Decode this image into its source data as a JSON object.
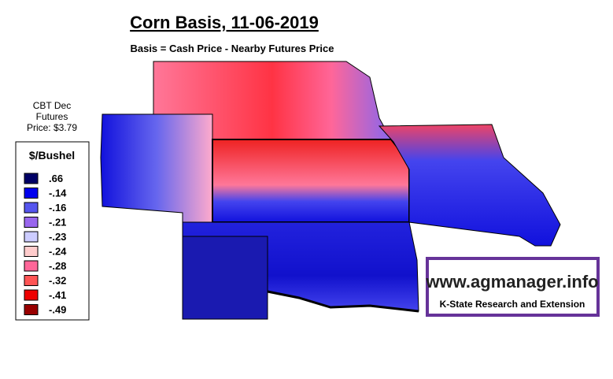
{
  "header": {
    "title": "Corn Basis, 11-06-2019",
    "subtitle": "Basis = Cash Price - Nearby Futures Price"
  },
  "futures_note": [
    "CBT Dec",
    "Futures",
    "Price: $3.79"
  ],
  "legend": {
    "title": "$/Bushel",
    "items": [
      {
        "label": ".66",
        "color": "#000066"
      },
      {
        "label": "-.14",
        "color": "#0000ee"
      },
      {
        "label": "-.16",
        "color": "#5555ee"
      },
      {
        "label": "-.21",
        "color": "#9966ee"
      },
      {
        "label": "-.23",
        "color": "#ccccff"
      },
      {
        "label": "-.24",
        "color": "#ffcccc"
      },
      {
        "label": "-.28",
        "color": "#ff6699"
      },
      {
        "label": "-.32",
        "color": "#ff5555"
      },
      {
        "label": "-.41",
        "color": "#ee0000"
      },
      {
        "label": "-.49",
        "color": "#990000"
      }
    ]
  },
  "logo": {
    "url": "www.agmanager.info",
    "org": "K-State Research and Extension"
  }
}
